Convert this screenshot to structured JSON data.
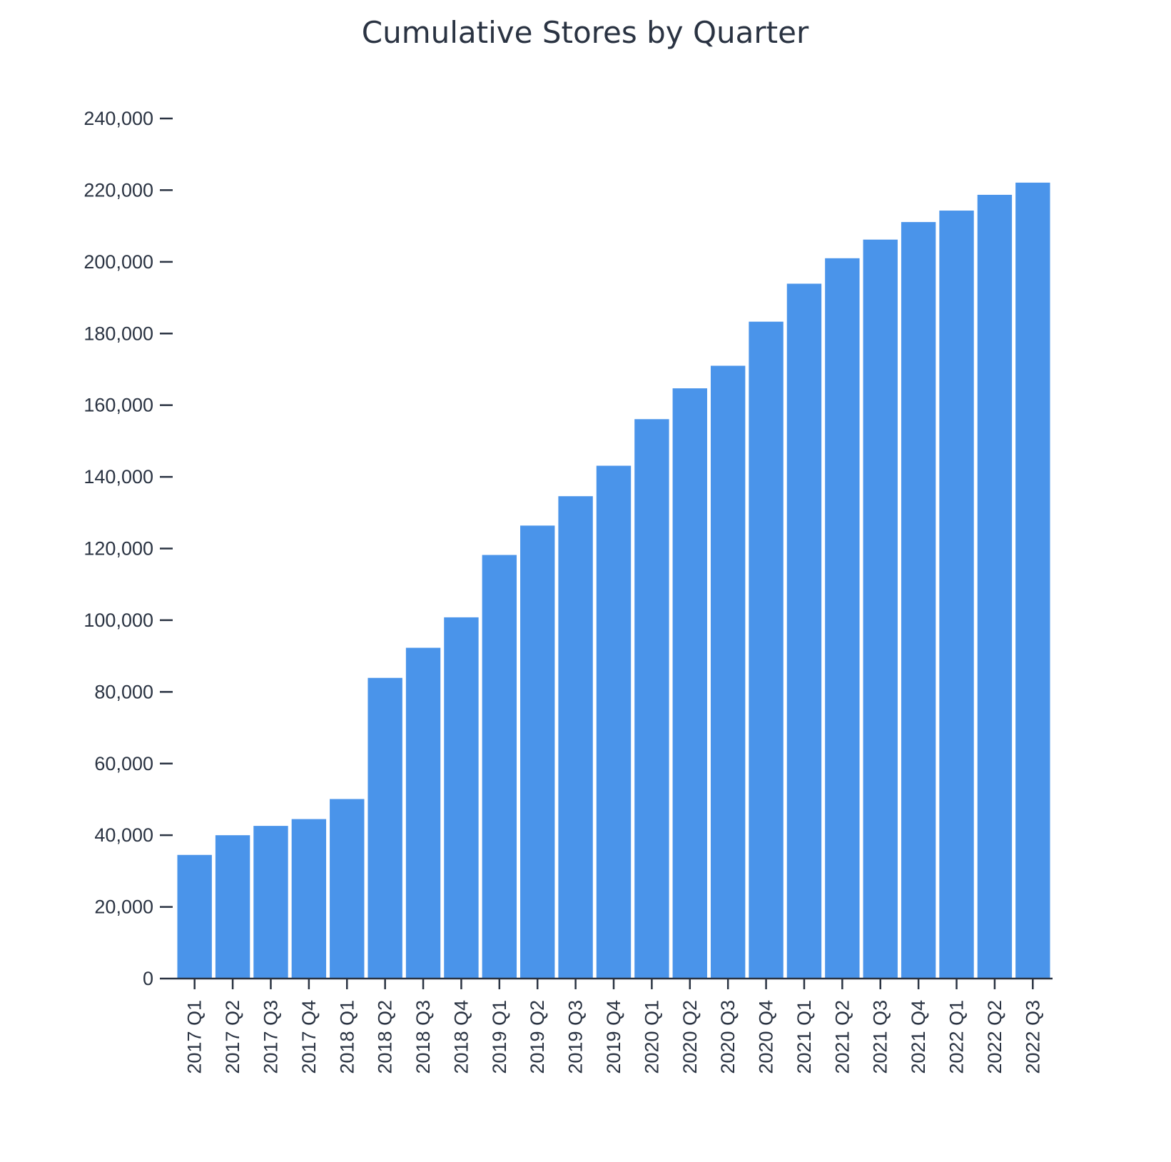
{
  "chart_data": {
    "type": "bar",
    "title": "Cumulative Stores by Quarter",
    "xlabel": "",
    "ylabel": "",
    "categories": [
      "2017 Q1",
      "2017 Q2",
      "2017 Q3",
      "2017 Q4",
      "2018 Q1",
      "2018 Q2",
      "2018 Q3",
      "2018 Q4",
      "2019 Q1",
      "2019 Q2",
      "2019 Q3",
      "2019 Q4",
      "2020 Q1",
      "2020 Q2",
      "2020 Q3",
      "2020 Q4",
      "2021 Q1",
      "2021 Q2",
      "2021 Q3",
      "2021 Q4",
      "2022 Q1",
      "2022 Q2",
      "2022 Q3"
    ],
    "values": [
      34500,
      40000,
      42600,
      44500,
      50100,
      83900,
      92300,
      100800,
      118200,
      126400,
      134600,
      143100,
      156100,
      164700,
      171000,
      183300,
      193900,
      201000,
      206200,
      211100,
      214300,
      218700,
      222100
    ],
    "ylim": [
      0,
      240000
    ],
    "yticks": [
      0,
      20000,
      40000,
      60000,
      80000,
      100000,
      120000,
      140000,
      160000,
      180000,
      200000,
      220000,
      240000
    ],
    "ytick_labels": [
      "0",
      "20,000",
      "40,000",
      "60,000",
      "80,000",
      "100,000",
      "120,000",
      "140,000",
      "160,000",
      "180,000",
      "200,000",
      "220,000",
      "240,000"
    ],
    "grid": false,
    "legend": "none",
    "bar_color": "#4a94ea",
    "axis_color": "#2a3342"
  }
}
